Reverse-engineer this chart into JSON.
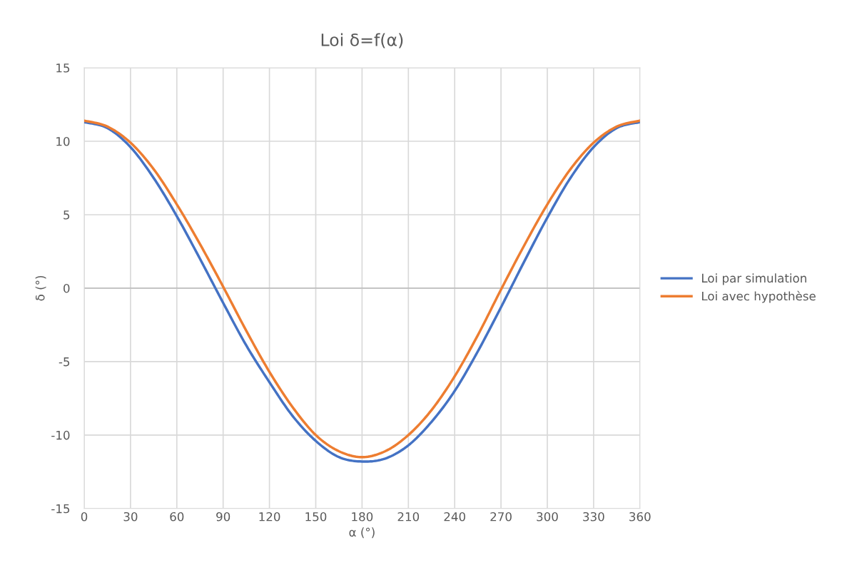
{
  "chart_data": {
    "type": "line",
    "title": "Loi δ=f(α)",
    "xlabel": "α (°)",
    "ylabel": "δ (°)",
    "x": [
      0,
      15,
      30,
      45,
      60,
      75,
      90,
      105,
      120,
      135,
      150,
      165,
      180,
      195,
      210,
      225,
      240,
      255,
      270,
      285,
      300,
      315,
      330,
      345,
      360
    ],
    "series": [
      {
        "name": "Loi par simulation",
        "color": "#4472c4",
        "values": [
          11.3,
          10.9,
          9.6,
          7.5,
          4.9,
          2.0,
          -1.0,
          -3.9,
          -6.4,
          -8.7,
          -10.4,
          -11.5,
          -11.8,
          -11.6,
          -10.7,
          -9.1,
          -7.0,
          -4.3,
          -1.3,
          1.8,
          4.8,
          7.5,
          9.6,
          10.9,
          11.3
        ]
      },
      {
        "name": "Loi avec hypothèse",
        "color": "#ed7d31",
        "values": [
          11.4,
          11.0,
          9.9,
          8.1,
          5.7,
          3.0,
          0.1,
          -2.9,
          -5.7,
          -8.1,
          -10.0,
          -11.1,
          -11.5,
          -11.1,
          -10.0,
          -8.3,
          -6.0,
          -3.2,
          -0.1,
          2.9,
          5.7,
          8.1,
          9.9,
          11.0,
          11.4
        ]
      }
    ],
    "xlim": [
      0,
      360
    ],
    "xticks": [
      0,
      30,
      60,
      90,
      120,
      150,
      180,
      210,
      240,
      270,
      300,
      330,
      360
    ],
    "ylim": [
      -15,
      15
    ],
    "yticks": [
      -15,
      -10,
      -5,
      0,
      5,
      10,
      15
    ],
    "grid": true,
    "legend": "right",
    "marker": "none",
    "line_style": "solid"
  }
}
